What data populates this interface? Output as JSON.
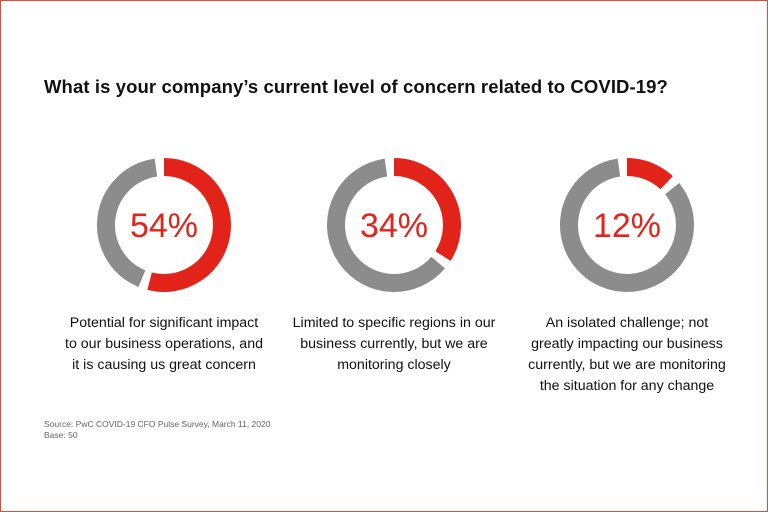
{
  "title": "What is your company’s current level of concern related to COVID-19?",
  "footer": {
    "source": "Source: PwC COVID-19 CFO Pulse Survey, March 11, 2020",
    "base": "Base: 50"
  },
  "colors": {
    "accent": "#e2231a",
    "track": "#8c8c8c",
    "frame": "#e24a3b"
  },
  "chart_data": [
    {
      "type": "pie",
      "variant": "donut",
      "values": [
        54
      ],
      "label": "54%",
      "caption": [
        "Potential for significant impact",
        "to our business operations, and",
        "it is causing us great concern"
      ]
    },
    {
      "type": "pie",
      "variant": "donut",
      "values": [
        34
      ],
      "label": "34%",
      "caption": [
        "Limited to specific regions in our",
        "business currently, but we are",
        "monitoring closely"
      ]
    },
    {
      "type": "pie",
      "variant": "donut",
      "values": [
        12
      ],
      "label": "12%",
      "caption": [
        "An isolated challenge; not",
        "greatly impacting our business",
        "currently, but we are monitoring",
        "the situation for any change"
      ]
    }
  ]
}
